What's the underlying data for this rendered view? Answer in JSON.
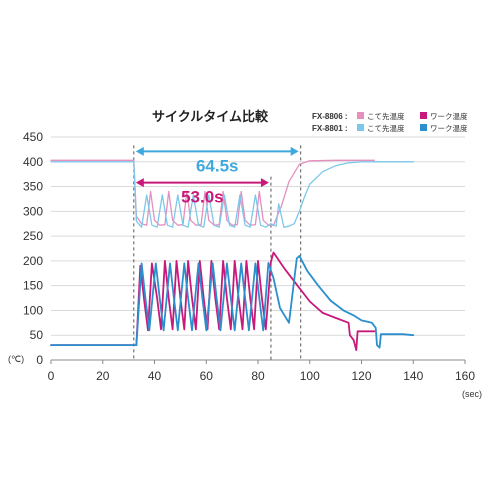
{
  "chart_data": {
    "type": "line",
    "title": "サイクルタイム比較",
    "xlabel": "(sec)",
    "ylabel": "(℃)",
    "xlim": [
      0,
      160
    ],
    "ylim": [
      0,
      450
    ],
    "xticks": [
      0,
      20,
      40,
      60,
      80,
      100,
      120,
      140,
      160
    ],
    "yticks": [
      0,
      50,
      100,
      150,
      200,
      250,
      300,
      350,
      400,
      450
    ],
    "grid": true,
    "legend_position": "top-right",
    "legend": [
      {
        "model": "FX-8806 :",
        "items": [
          "こて先温度",
          "ワーク温度"
        ]
      },
      {
        "model": "FX-8801 :",
        "items": [
          "こて先温度",
          "ワーク温度"
        ]
      }
    ],
    "series": [
      {
        "name": "FX-8806 こて先温度",
        "color": "#e58fbf",
        "x": [
          0,
          32,
          33,
          35,
          37,
          38.5,
          40,
          42,
          44,
          45.5,
          47,
          49,
          51,
          52.5,
          54,
          56,
          58,
          59.5,
          61,
          63,
          65,
          66.5,
          68,
          70,
          72,
          73.5,
          75,
          77,
          79,
          80.5,
          82,
          84,
          86,
          89,
          92,
          96,
          100,
          110,
          120,
          125
        ],
        "y": [
          403,
          403,
          290,
          275,
          272,
          340,
          282,
          272,
          273,
          340,
          282,
          272,
          273,
          340,
          282,
          272,
          273,
          340,
          282,
          272,
          273,
          340,
          282,
          272,
          273,
          340,
          282,
          272,
          273,
          340,
          282,
          272,
          272,
          310,
          360,
          395,
          402,
          403,
          403,
          403
        ]
      },
      {
        "name": "FX-8806 ワーク温度",
        "color": "#c8197a",
        "x": [
          0,
          32,
          33,
          34.5,
          36,
          37.5,
          39,
          41,
          42.5,
          44,
          45.5,
          47,
          48.5,
          50,
          51.5,
          53,
          54.5,
          56,
          57.5,
          59,
          60.5,
          62,
          63.5,
          65,
          66.5,
          68,
          69.5,
          71,
          72.5,
          74,
          75.5,
          77,
          78.5,
          80,
          81.5,
          83,
          85,
          86,
          90,
          95,
          100,
          105,
          110,
          115,
          115.5,
          117,
          118,
          118.5,
          124,
          125
        ],
        "y": [
          30,
          30,
          30,
          190,
          120,
          60,
          195,
          125,
          62,
          200,
          125,
          62,
          200,
          125,
          62,
          200,
          125,
          62,
          200,
          125,
          62,
          200,
          125,
          62,
          200,
          125,
          62,
          200,
          125,
          62,
          200,
          125,
          62,
          200,
          125,
          62,
          198,
          217,
          186,
          152,
          118,
          95,
          85,
          75,
          50,
          40,
          20,
          58,
          58,
          58
        ]
      },
      {
        "name": "FX-8801 こて先温度",
        "color": "#7cc8ea",
        "x": [
          0,
          32,
          33,
          35,
          37,
          39,
          41,
          43,
          45,
          47,
          49,
          51,
          53,
          55,
          57,
          59,
          61,
          63,
          65,
          67,
          69,
          71,
          73,
          75,
          77,
          79,
          81,
          83,
          85,
          87,
          88,
          90,
          92,
          94,
          96,
          98,
          100,
          105,
          110,
          115,
          120,
          130,
          140
        ],
        "y": [
          400,
          400,
          280,
          268,
          333,
          272,
          268,
          333,
          272,
          268,
          333,
          272,
          268,
          333,
          272,
          268,
          333,
          272,
          268,
          333,
          272,
          268,
          333,
          272,
          268,
          333,
          272,
          268,
          275,
          270,
          315,
          268,
          270,
          275,
          300,
          330,
          355,
          380,
          392,
          398,
          400,
          400,
          400
        ]
      },
      {
        "name": "FX-8801 ワーク温度",
        "color": "#2b8fce",
        "x": [
          0,
          32,
          33,
          35,
          36.5,
          38,
          40.5,
          42,
          43.5,
          46,
          47.5,
          49,
          51.5,
          53,
          54.5,
          57,
          58.5,
          60,
          62.5,
          64,
          65.5,
          68,
          69.5,
          71,
          73.5,
          75,
          76.5,
          79,
          80.5,
          82,
          84,
          86,
          88.5,
          92,
          95,
          96,
          99,
          103,
          108,
          113,
          117,
          120,
          124,
          125.5,
          126,
          127,
          127.5,
          132,
          136,
          140
        ],
        "y": [
          30,
          30,
          30,
          195,
          125,
          60,
          195,
          125,
          60,
          195,
          125,
          60,
          195,
          125,
          60,
          195,
          125,
          60,
          195,
          125,
          60,
          195,
          125,
          60,
          195,
          125,
          60,
          195,
          125,
          60,
          196,
          165,
          105,
          75,
          205,
          210,
          180,
          152,
          120,
          100,
          90,
          80,
          75,
          65,
          30,
          25,
          52,
          52,
          52,
          50
        ]
      }
    ],
    "annotations": [
      {
        "label": "64.5s",
        "color": "#3fa9de",
        "x_start": 32,
        "x_end": 96.5,
        "y": 421
      },
      {
        "label": "53.0s",
        "color": "#c8197a",
        "x_start": 32,
        "x_end": 85,
        "y": 358
      }
    ]
  }
}
